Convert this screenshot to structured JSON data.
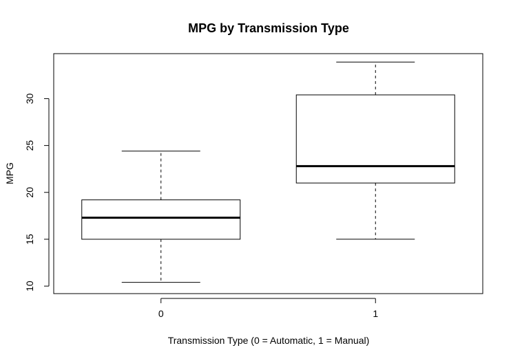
{
  "chart_data": {
    "type": "box",
    "title": "MPG by Transmission Type",
    "xlabel": "Transmission Type (0 = Automatic, 1 = Manual)",
    "ylabel": "MPG",
    "ylim": [
      9.2,
      34.8
    ],
    "yticks": [
      10,
      15,
      20,
      25,
      30
    ],
    "categories": [
      "0",
      "1"
    ],
    "boxes": [
      {
        "category": "0",
        "min": 10.4,
        "q1": 15.0,
        "median": 17.3,
        "q3": 19.2,
        "max": 24.4
      },
      {
        "category": "1",
        "min": 15.0,
        "q1": 21.0,
        "median": 22.8,
        "q3": 30.4,
        "max": 33.9
      }
    ],
    "grid": false,
    "legend": "none"
  }
}
